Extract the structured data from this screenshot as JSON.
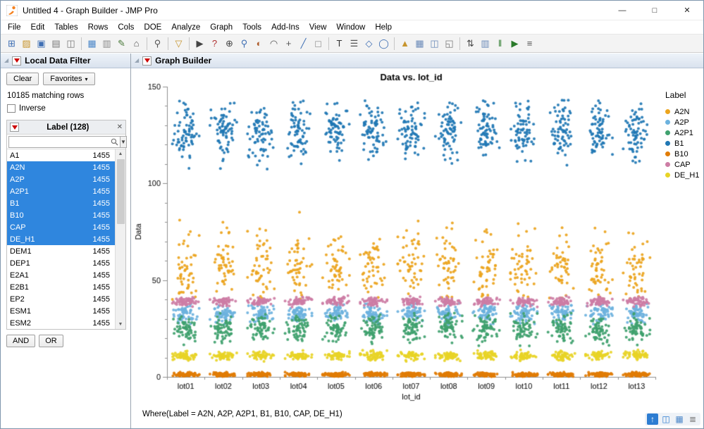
{
  "window": {
    "title": "Untitled 4 - Graph Builder - JMP Pro",
    "minimize": "—",
    "maximize": "□",
    "close": "✕"
  },
  "menu": {
    "items": [
      "File",
      "Edit",
      "Tables",
      "Rows",
      "Cols",
      "DOE",
      "Analyze",
      "Graph",
      "Tools",
      "Add-Ins",
      "View",
      "Window",
      "Help"
    ]
  },
  "toolbar": {
    "items": [
      {
        "name": "new-data-table",
        "glyph": "⊞",
        "color": "#3f6fb4"
      },
      {
        "name": "open-file",
        "glyph": "▨",
        "color": "#c7952e"
      },
      {
        "name": "save",
        "glyph": "▣",
        "color": "#3f6fb4"
      },
      {
        "name": "print-preview",
        "glyph": "▤",
        "color": "#787878"
      },
      {
        "name": "copy",
        "glyph": "◫",
        "color": "#787878"
      },
      {
        "sep": true
      },
      {
        "name": "data-table",
        "glyph": "▦",
        "color": "#4a86c8"
      },
      {
        "name": "journal",
        "glyph": "▥",
        "color": "#8a8a8a"
      },
      {
        "name": "script-editor",
        "glyph": "✎",
        "color": "#4a7a3a"
      },
      {
        "name": "home-window",
        "glyph": "⌂",
        "color": "#555555"
      },
      {
        "sep": true
      },
      {
        "name": "search",
        "glyph": "⚲",
        "color": "#555555"
      },
      {
        "sep": true
      },
      {
        "name": "data-filter",
        "glyph": "▽",
        "color": "#c7952e"
      },
      {
        "sep": true
      },
      {
        "name": "arrow-tool",
        "glyph": "▶",
        "color": "#444444"
      },
      {
        "name": "help-tool",
        "glyph": "?",
        "color": "#b03030"
      },
      {
        "name": "zoom-in-tool",
        "glyph": "⊕",
        "color": "#444444"
      },
      {
        "name": "magnifier-tool",
        "glyph": "⚲",
        "color": "#3f6fb4"
      },
      {
        "name": "brush-tool",
        "glyph": "◐",
        "color": "#b06030"
      },
      {
        "name": "lasso-tool",
        "glyph": "◠",
        "color": "#555555"
      },
      {
        "name": "crosshair-tool",
        "glyph": "+",
        "color": "#555555"
      },
      {
        "name": "line-tool",
        "glyph": "╱",
        "color": "#3f6fb4"
      },
      {
        "name": "eraser-tool",
        "glyph": "◻",
        "color": "#999999"
      },
      {
        "sep": true
      },
      {
        "name": "text-tool",
        "glyph": "T",
        "color": "#333333"
      },
      {
        "name": "list-tool",
        "glyph": "☰",
        "color": "#555555"
      },
      {
        "name": "polygon-tool",
        "glyph": "◇",
        "color": "#3f6fb4"
      },
      {
        "name": "oval-tool",
        "glyph": "◯",
        "color": "#3f6fb4"
      },
      {
        "sep": true
      },
      {
        "name": "flag-marker",
        "glyph": "▲",
        "color": "#c7952e"
      },
      {
        "name": "grid-window",
        "glyph": "▦",
        "color": "#6a8ab8"
      },
      {
        "name": "window-layout",
        "glyph": "◫",
        "color": "#6a8ab8"
      },
      {
        "name": "table-preview",
        "glyph": "◱",
        "color": "#787878"
      },
      {
        "sep": true
      },
      {
        "name": "sort-tool",
        "glyph": "⇅",
        "color": "#444444"
      },
      {
        "name": "columns-tool",
        "glyph": "▥",
        "color": "#6a8ab8"
      },
      {
        "name": "bars-tool",
        "glyph": "‖",
        "color": "#2a7a2a"
      },
      {
        "name": "run-script",
        "glyph": "▶",
        "color": "#2a7a2a"
      },
      {
        "name": "journal-log",
        "glyph": "≡",
        "color": "#555555"
      }
    ]
  },
  "filter_panel": {
    "title": "Local Data Filter",
    "clear_button": "Clear",
    "favorites_button": "Favorites",
    "favorites_arrow": "▾",
    "matching_rows": "10185 matching rows",
    "inverse_label": "Inverse",
    "inverse_checked": false,
    "column_title": "Label (128)",
    "close_glyph": "✕",
    "search_value": "",
    "search_placeholder": "",
    "and_button": "AND",
    "or_button": "OR",
    "items": [
      {
        "label": "A1",
        "count": "1455",
        "selected": false
      },
      {
        "label": "A2N",
        "count": "1455",
        "selected": true
      },
      {
        "label": "A2P",
        "count": "1455",
        "selected": true
      },
      {
        "label": "A2P1",
        "count": "1455",
        "selected": true
      },
      {
        "label": "B1",
        "count": "1455",
        "selected": true
      },
      {
        "label": "B10",
        "count": "1455",
        "selected": true
      },
      {
        "label": "CAP",
        "count": "1455",
        "selected": true
      },
      {
        "label": "DE_H1",
        "count": "1455",
        "selected": true
      },
      {
        "label": "DEM1",
        "count": "1455",
        "selected": false
      },
      {
        "label": "DEP1",
        "count": "1455",
        "selected": false
      },
      {
        "label": "E2A1",
        "count": "1455",
        "selected": false
      },
      {
        "label": "E2B1",
        "count": "1455",
        "selected": false
      },
      {
        "label": "EP2",
        "count": "1455",
        "selected": false
      },
      {
        "label": "ESM1",
        "count": "1455",
        "selected": false
      },
      {
        "label": "ESM2",
        "count": "1455",
        "selected": false
      }
    ]
  },
  "graph_panel": {
    "title": "Graph Builder",
    "where_caption": "Where(Label = A2N, A2P, A2P1, B1, B10, CAP, DE_H1)"
  },
  "status_bar": {
    "icons": [
      {
        "name": "scroll-up-button",
        "glyph": "↑",
        "fg": "#ffffff",
        "bg": "#2d7dd2"
      },
      {
        "name": "window-manager",
        "glyph": "◫",
        "fg": "#2d7dd2",
        "bg": "transparent"
      },
      {
        "name": "data-table-shortcut",
        "glyph": "▦",
        "fg": "#4a86c8",
        "bg": "transparent"
      },
      {
        "name": "log-shortcut",
        "glyph": "≣",
        "fg": "#777777",
        "bg": "transparent"
      }
    ]
  },
  "chart_data": {
    "type": "scatter",
    "title": "Data vs. lot_id",
    "xlabel": "lot_id",
    "ylabel": "Data",
    "ylim": [
      0,
      150
    ],
    "yticks": [
      0,
      50,
      100,
      150
    ],
    "grid": false,
    "legend_title": "Label",
    "legend_position": "right",
    "categories": [
      "lot01",
      "lot02",
      "lot03",
      "lot04",
      "lot05",
      "lot06",
      "lot07",
      "lot08",
      "lot09",
      "lot10",
      "lot11",
      "lot12",
      "lot13"
    ],
    "series": [
      {
        "name": "A2N",
        "color": "#eca41d",
        "center": 57,
        "spread": 9.5,
        "min": 40,
        "max": 87,
        "points_per_lot": 50
      },
      {
        "name": "A2P",
        "color": "#6cb2de",
        "center": 33,
        "spread": 2.3,
        "min": 27,
        "max": 38,
        "points_per_lot": 60
      },
      {
        "name": "A2P1",
        "color": "#3fa16e",
        "center": 25,
        "spread": 3.5,
        "min": 16,
        "max": 33,
        "points_per_lot": 60
      },
      {
        "name": "B1",
        "color": "#2077b4",
        "center": 127,
        "spread": 7,
        "min": 107,
        "max": 143,
        "points_per_lot": 70
      },
      {
        "name": "B10",
        "color": "#e17c05",
        "center": 1.2,
        "spread": 0.5,
        "min": 0.2,
        "max": 2.5,
        "points_per_lot": 90
      },
      {
        "name": "CAP",
        "color": "#cd7da5",
        "center": 39,
        "spread": 1.1,
        "min": 36,
        "max": 42,
        "points_per_lot": 55
      },
      {
        "name": "DE_H1",
        "color": "#e8d426",
        "center": 11,
        "spread": 1.1,
        "min": 8,
        "max": 14,
        "points_per_lot": 55
      }
    ]
  }
}
